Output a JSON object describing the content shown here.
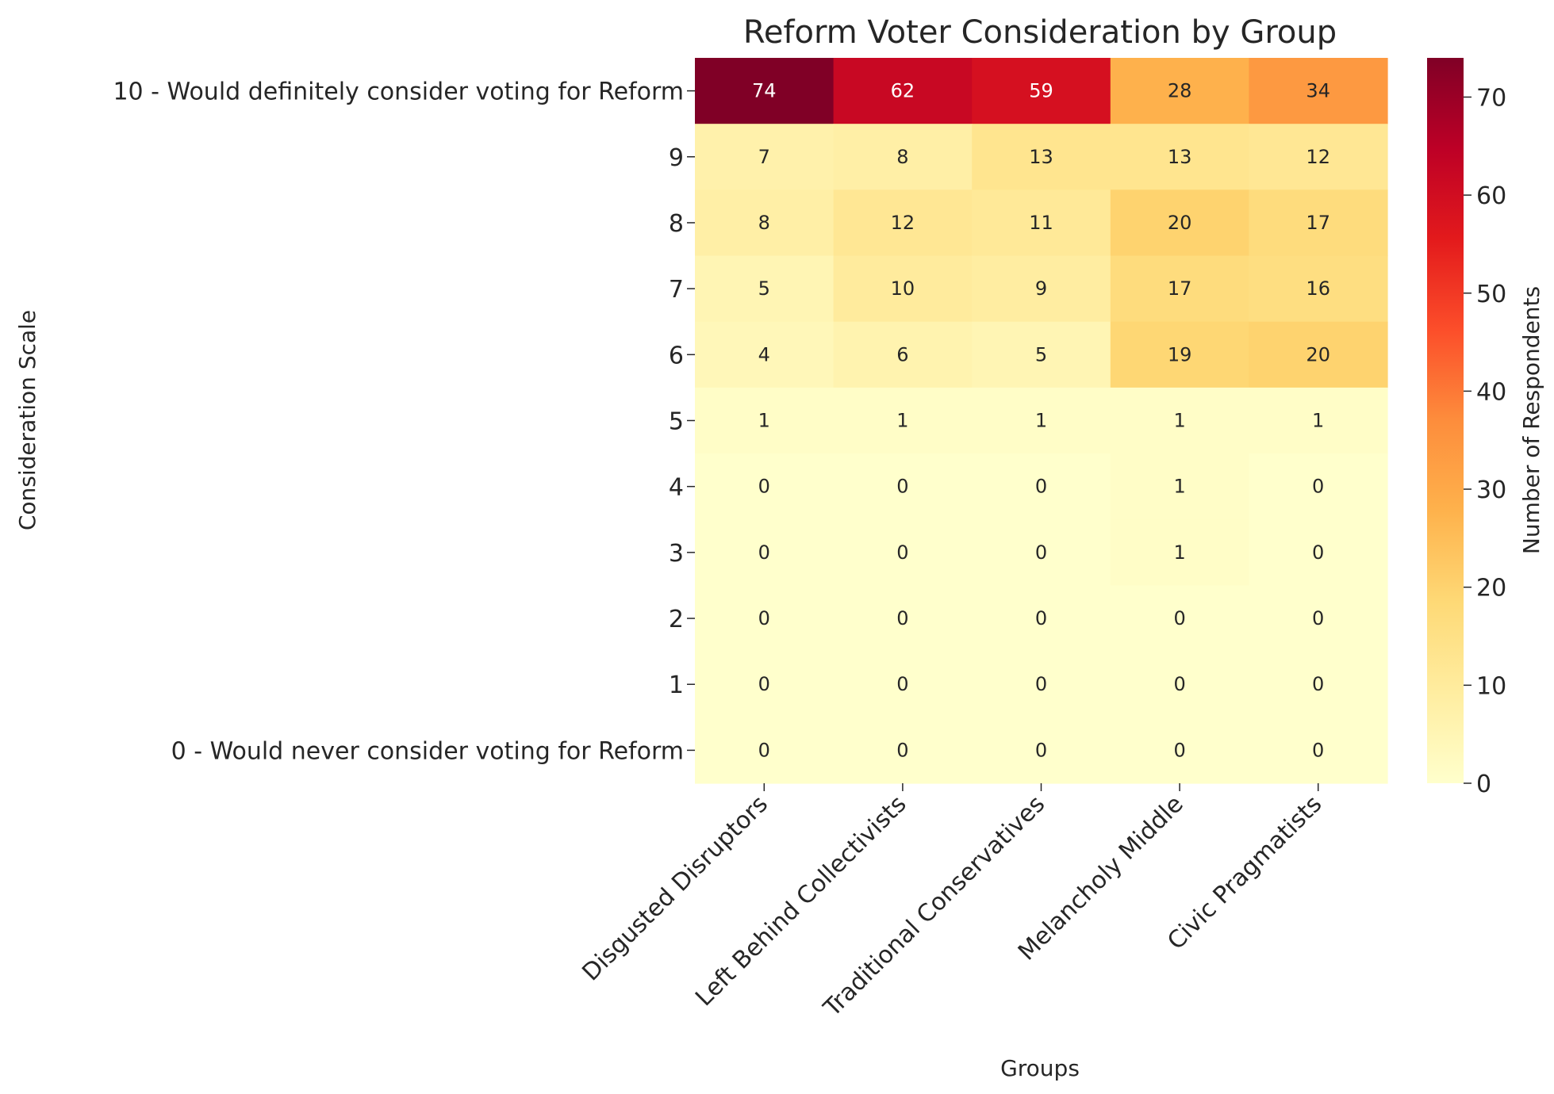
{
  "chart_data": {
    "type": "heatmap",
    "title": "Reform Voter Consideration by Group",
    "xlabel": "Groups",
    "ylabel": "Consideration Scale",
    "colorbar_label": "Number of Respondents",
    "colormap": "YlOrRd",
    "vmin": 0,
    "vmax": 74,
    "colorbar_ticks": [
      0,
      10,
      20,
      30,
      40,
      50,
      60,
      70
    ],
    "x_categories": [
      "Disgusted Disruptors",
      "Left Behind Collectivists",
      "Traditional Conservatives",
      "Melancholy Middle",
      "Civic Pragmatists"
    ],
    "y_categories": [
      "10 - Would definitely consider voting for Reform",
      "9",
      "8",
      "7",
      "6",
      "5",
      "4",
      "3",
      "2",
      "1",
      "0 - Would never consider voting for Reform"
    ],
    "values": [
      [
        74,
        62,
        59,
        28,
        34
      ],
      [
        7,
        8,
        13,
        13,
        12
      ],
      [
        8,
        12,
        11,
        20,
        17
      ],
      [
        5,
        10,
        9,
        17,
        16
      ],
      [
        4,
        6,
        5,
        19,
        20
      ],
      [
        1,
        1,
        1,
        1,
        1
      ],
      [
        0,
        0,
        0,
        1,
        0
      ],
      [
        0,
        0,
        0,
        1,
        0
      ],
      [
        0,
        0,
        0,
        0,
        0
      ],
      [
        0,
        0,
        0,
        0,
        0
      ],
      [
        0,
        0,
        0,
        0,
        0
      ]
    ]
  }
}
